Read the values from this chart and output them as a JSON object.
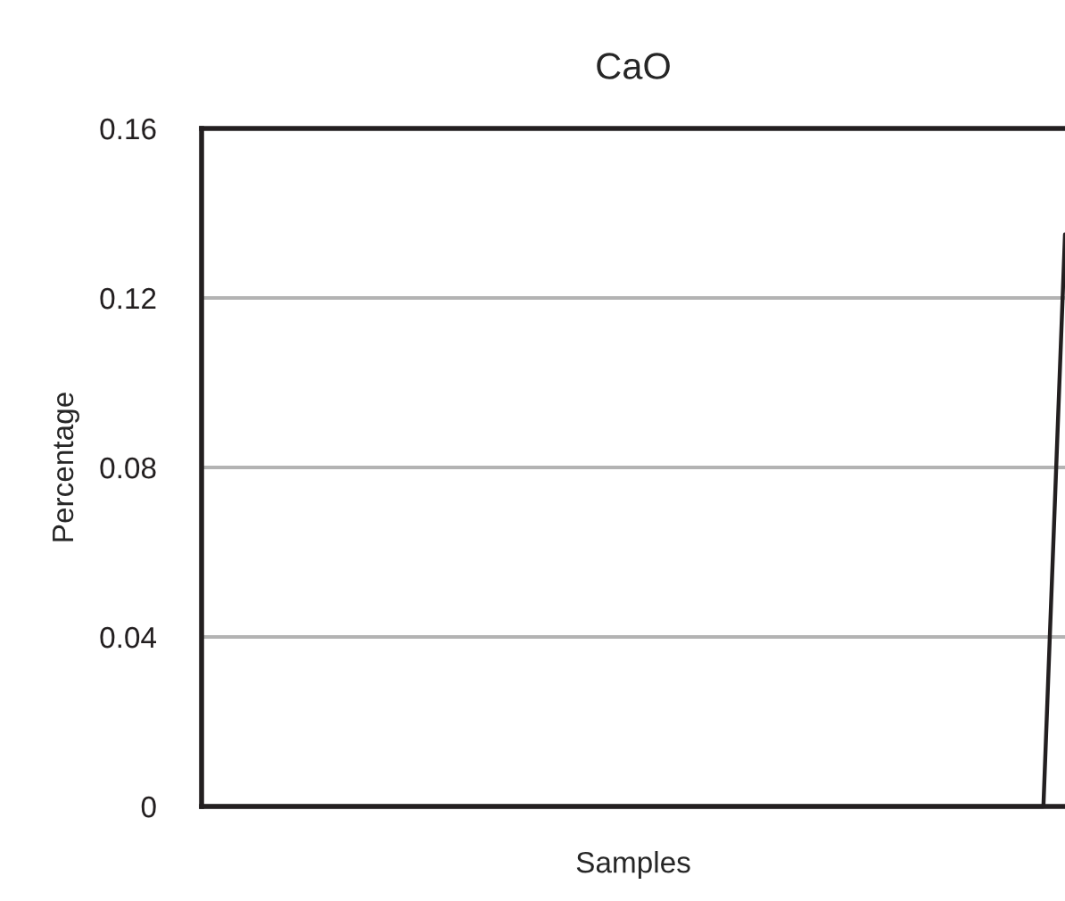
{
  "chart_data": {
    "type": "line",
    "title": "CaO",
    "xlabel": "Samples",
    "ylabel": "Percentage",
    "categories": [
      null,
      null,
      null,
      null,
      null,
      null,
      null,
      null,
      null,
      null,
      null,
      null,
      null,
      null,
      null,
      null,
      null,
      null,
      null,
      null,
      null,
      null,
      null,
      null,
      null,
      null,
      null,
      null,
      null,
      null,
      null,
      null,
      null,
      null,
      null,
      null,
      null,
      null,
      null,
      null,
      null
    ],
    "series": [
      {
        "color": "#231f20",
        "values": [
          0,
          0,
          0,
          0,
          0,
          0,
          0,
          0,
          0,
          0,
          0,
          0,
          0,
          0,
          0,
          0,
          0,
          0,
          0,
          0,
          0,
          0,
          0,
          0,
          0,
          0,
          0,
          0,
          0,
          0,
          0,
          0,
          0,
          0,
          0,
          0,
          0,
          0,
          0,
          0,
          0.135
        ]
      }
    ],
    "ylim": [
      0,
      0.16
    ],
    "yticks": [
      0,
      0.04,
      0.08,
      0.12,
      0.16
    ],
    "grid": "y",
    "legend": false,
    "marker": "none",
    "line_style": "solid"
  }
}
